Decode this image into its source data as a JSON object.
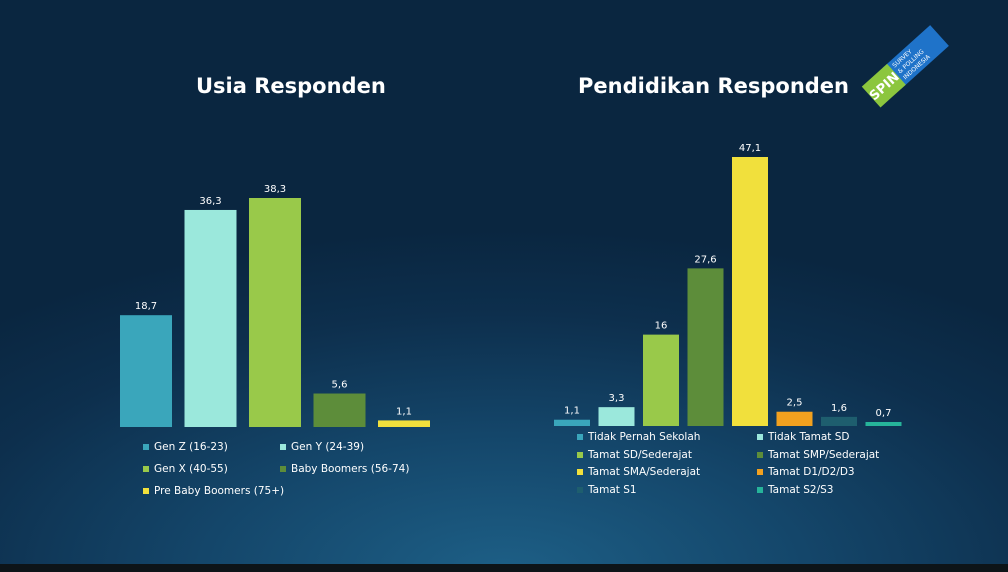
{
  "charts": {
    "left": {
      "title": "Usia Responden"
    },
    "right": {
      "title": "Pendidikan Responden"
    }
  },
  "logo": {
    "main": "SPIN",
    "line1": "SURVEY",
    "line2": "& POLLING",
    "line3": "INDONESIA"
  },
  "chart_data": [
    {
      "type": "bar",
      "title": "Usia Responden",
      "categories": [
        "Gen Z (16-23)",
        "Gen Y (24-39)",
        "Gen X (40-55)",
        "Baby Boomers (56-74)",
        "Pre Baby Boomers (75+)"
      ],
      "values": [
        18.7,
        36.3,
        38.3,
        5.6,
        1.1
      ],
      "value_labels": [
        "18,7",
        "36,3",
        "38,3",
        "5,6",
        "1,1"
      ],
      "colors": [
        "#3aa6bb",
        "#9be8dc",
        "#99c94a",
        "#5d8d3a",
        "#f1e03c"
      ],
      "legend": "bottom",
      "grid": false
    },
    {
      "type": "bar",
      "title": "Pendidikan Responden",
      "categories": [
        "Tidak Pernah Sekolah",
        "Tidak Tamat SD",
        "Tamat SD/Sederajat",
        "Tamat SMP/Sederajat",
        "Tamat SMA/Sederajat",
        "Tamat D1/D2/D3",
        "Tamat S1",
        "Tamat S2/S3"
      ],
      "values": [
        1.1,
        3.3,
        16,
        27.6,
        47.1,
        2.5,
        1.6,
        0.7
      ],
      "value_labels": [
        "1,1",
        "3,3",
        "16",
        "27,6",
        "47,1",
        "2,5",
        "1,6",
        "0,7"
      ],
      "colors": [
        "#3aa6bb",
        "#9be8dc",
        "#99c94a",
        "#5d8d3a",
        "#f1e03c",
        "#f2a11f",
        "#1e5e6e",
        "#26b49a"
      ],
      "legend": "bottom",
      "grid": false
    }
  ]
}
